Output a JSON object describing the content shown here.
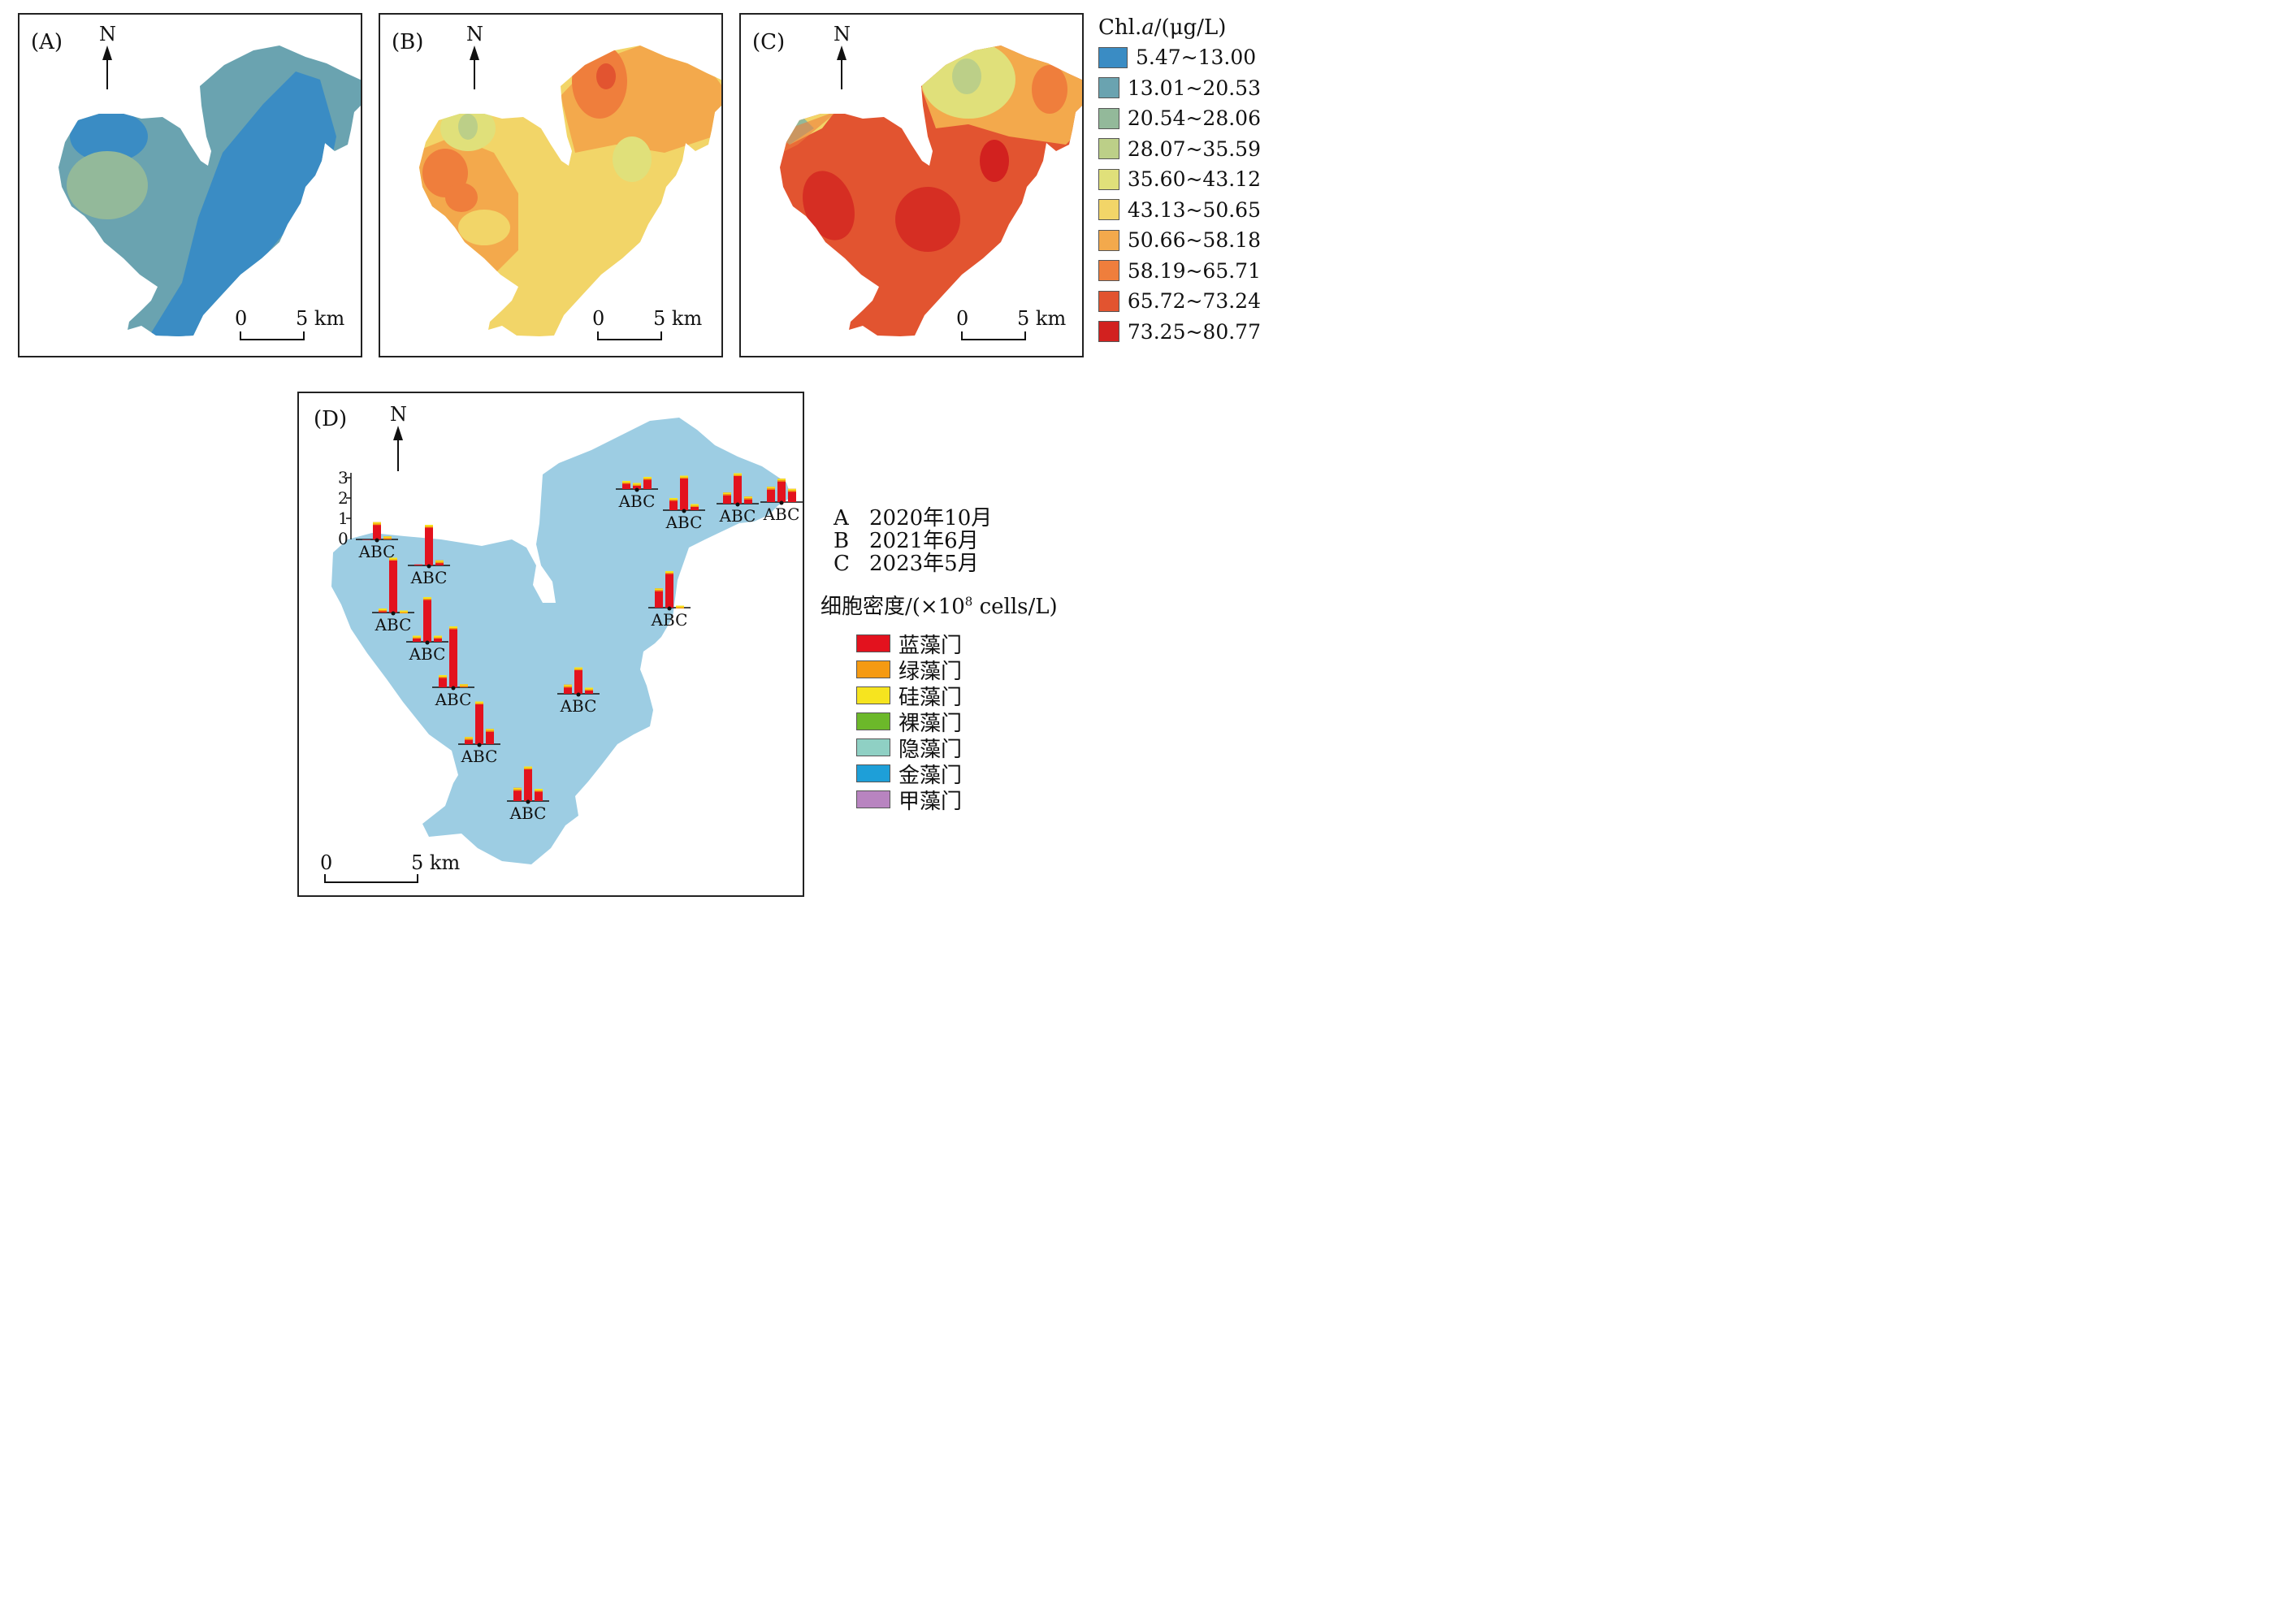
{
  "panels": [
    {
      "label": "(A)",
      "north": "N",
      "scale_zero": "0",
      "scale_end": "5 km"
    },
    {
      "label": "(B)",
      "north": "N",
      "scale_zero": "0",
      "scale_end": "5 km"
    },
    {
      "label": "(C)",
      "north": "N",
      "scale_zero": "0",
      "scale_end": "5 km"
    }
  ],
  "panel_d": {
    "label": "(D)",
    "north": "N",
    "scale_zero": "0",
    "scale_end": "5 km",
    "axis_ticks": [
      "3",
      "2",
      "1",
      "0"
    ],
    "site_label": "ABC"
  },
  "chl_legend": {
    "title_prefix": "Chl.",
    "title_italic": "a",
    "title_suffix": "/(μg/L)",
    "items": [
      {
        "label": "5.47~13.00",
        "color": "#3a8cc4"
      },
      {
        "label": "13.01~20.53",
        "color": "#6aa3b0"
      },
      {
        "label": "20.54~28.06",
        "color": "#93b99a"
      },
      {
        "label": "28.07~35.59",
        "color": "#bccf88"
      },
      {
        "label": "35.60~43.12",
        "color": "#e0e07a"
      },
      {
        "label": "43.13~50.65",
        "color": "#f2d568"
      },
      {
        "label": "50.66~58.18",
        "color": "#f3a94c"
      },
      {
        "label": "58.19~65.71",
        "color": "#ef7e3c"
      },
      {
        "label": "65.72~73.24",
        "color": "#e25430"
      },
      {
        "label": "73.25~80.77",
        "color": "#d2211f"
      }
    ]
  },
  "period_legend": [
    {
      "key": "A",
      "value": "2020年10月"
    },
    {
      "key": "B",
      "value": "2021年6月"
    },
    {
      "key": "C",
      "value": "2023年5月"
    }
  ],
  "density_title_prefix": "细胞密度/(×10",
  "density_title_sup": "8",
  "density_title_suffix": " cells/L)",
  "phyla_legend": [
    {
      "label": "蓝藻门",
      "color": "#e3121e"
    },
    {
      "label": "绿藻门",
      "color": "#f59a12"
    },
    {
      "label": "硅藻门",
      "color": "#f6e41f"
    },
    {
      "label": "裸藻门",
      "color": "#6cb82a"
    },
    {
      "label": "隐藻门",
      "color": "#8fd0c4"
    },
    {
      "label": "金藻门",
      "color": "#1e9fd8"
    },
    {
      "label": "甲藻门",
      "color": "#b884c0"
    }
  ],
  "sites": [
    {
      "A": 0.0,
      "B": 0.85,
      "C": 0.15
    },
    {
      "A": 0.05,
      "B": 2.0,
      "C": 0.25
    },
    {
      "A": 0.2,
      "B": 2.7,
      "C": 0.1
    },
    {
      "A": 0.3,
      "B": 2.2,
      "C": 0.3
    },
    {
      "A": 0.6,
      "B": 3.0,
      "C": 0.15
    },
    {
      "A": 0.35,
      "B": 2.1,
      "C": 0.75
    },
    {
      "A": 0.65,
      "B": 1.7,
      "C": 0.6
    },
    {
      "A": 0.45,
      "B": 1.3,
      "C": 0.3
    },
    {
      "A": 0.4,
      "B": 0.3,
      "C": 0.6
    },
    {
      "A": 0.6,
      "B": 1.7,
      "C": 0.3
    },
    {
      "A": 0.55,
      "B": 1.5,
      "C": 0.35
    },
    {
      "A": 0.95,
      "B": 1.8,
      "C": 0.1
    },
    {
      "A": 0.75,
      "B": 1.15,
      "C": 0.65
    }
  ]
}
